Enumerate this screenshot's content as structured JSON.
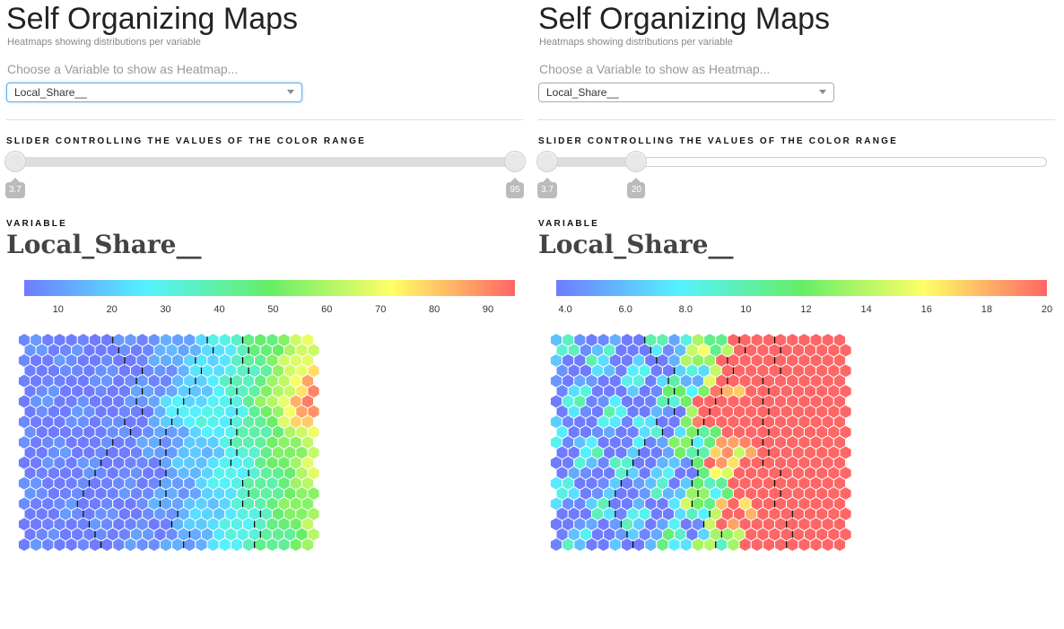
{
  "panels": [
    {
      "title": "Self Organizing Maps",
      "subtitle": "Heatmaps showing distributions per variable",
      "choose_label": "Choose a Variable to show as Heatmap...",
      "select_value": "Local_Share__",
      "slider_label": "SLIDER CONTROLLING THE VALUES OF THE COLOR RANGE",
      "slider": {
        "min_value": "3.7",
        "max_value": "95",
        "low": 3.7,
        "high": 95,
        "domain": [
          3.7,
          95
        ]
      },
      "variable_label": "VARIABLE",
      "variable_name": "Local_Share__",
      "legend_ticks": [
        "10",
        "20",
        "30",
        "40",
        "50",
        "60",
        "70",
        "80",
        "90"
      ],
      "legend_tick_values": [
        10,
        20,
        30,
        40,
        50,
        60,
        70,
        80,
        90
      ]
    },
    {
      "title": "Self Organizing Maps",
      "subtitle": "Heatmaps showing distributions per variable",
      "choose_label": "Choose a Variable to show as Heatmap...",
      "select_value": "Local_Share__",
      "slider_label": "SLIDER CONTROLLING THE VALUES OF THE COLOR RANGE",
      "slider": {
        "min_value": "3.7",
        "max_value": "20",
        "low": 3.7,
        "high": 20,
        "domain": [
          3.7,
          95
        ]
      },
      "variable_label": "VARIABLE",
      "variable_name": "Local_Share__",
      "legend_ticks": [
        "4.0",
        "6.0",
        "8.0",
        "10",
        "12",
        "14",
        "16",
        "18",
        "20"
      ],
      "legend_tick_values": [
        4,
        6,
        8,
        10,
        12,
        14,
        16,
        18,
        20
      ]
    }
  ],
  "colors": {
    "scale": [
      "#6f7cff",
      "#55f2ff",
      "#66ee66",
      "#ffff66",
      "#ff6666"
    ],
    "cluster_border": "#000000"
  }
}
